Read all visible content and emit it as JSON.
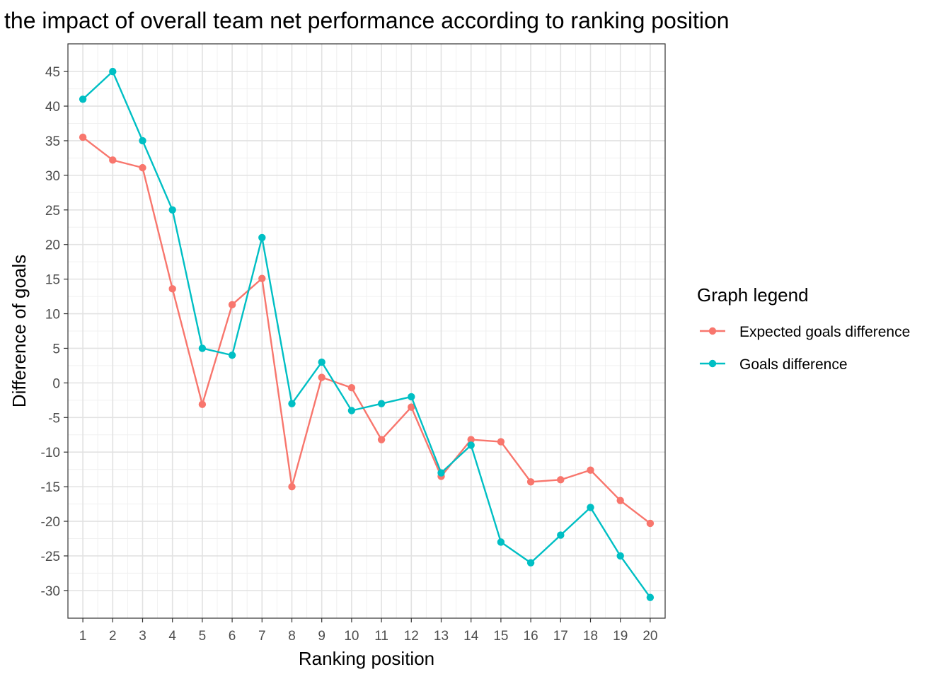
{
  "chart_data": {
    "type": "line",
    "title": "the impact of overall team net performance according to ranking position",
    "xlabel": "Ranking position",
    "ylabel": "Difference of goals",
    "x": [
      1,
      2,
      3,
      4,
      5,
      6,
      7,
      8,
      9,
      10,
      11,
      12,
      13,
      14,
      15,
      16,
      17,
      18,
      19,
      20
    ],
    "xlim": [
      0.5,
      20.5
    ],
    "ylim": [
      -34,
      49
    ],
    "yticks": [
      -30,
      -25,
      -20,
      -15,
      -10,
      -5,
      0,
      5,
      10,
      15,
      20,
      25,
      30,
      35,
      40,
      45
    ],
    "grid": true,
    "legend": {
      "title": "Graph legend",
      "position": "right"
    },
    "series": [
      {
        "name": "Expected goals difference",
        "color": "#f8766d",
        "values": [
          35.5,
          32.2,
          31.1,
          13.6,
          -3.1,
          11.3,
          15.1,
          -15.0,
          0.8,
          -0.7,
          -8.2,
          -3.5,
          -13.5,
          -8.2,
          -8.5,
          -14.3,
          -14.0,
          -12.6,
          -17.0,
          -20.3
        ]
      },
      {
        "name": "Goals difference",
        "color": "#00bfc4",
        "values": [
          41,
          45,
          35,
          25,
          5,
          4,
          21,
          -3,
          3,
          -4,
          -3,
          -2,
          -13,
          -9,
          -23,
          -26,
          -22,
          -18,
          -25,
          -31
        ]
      }
    ]
  }
}
